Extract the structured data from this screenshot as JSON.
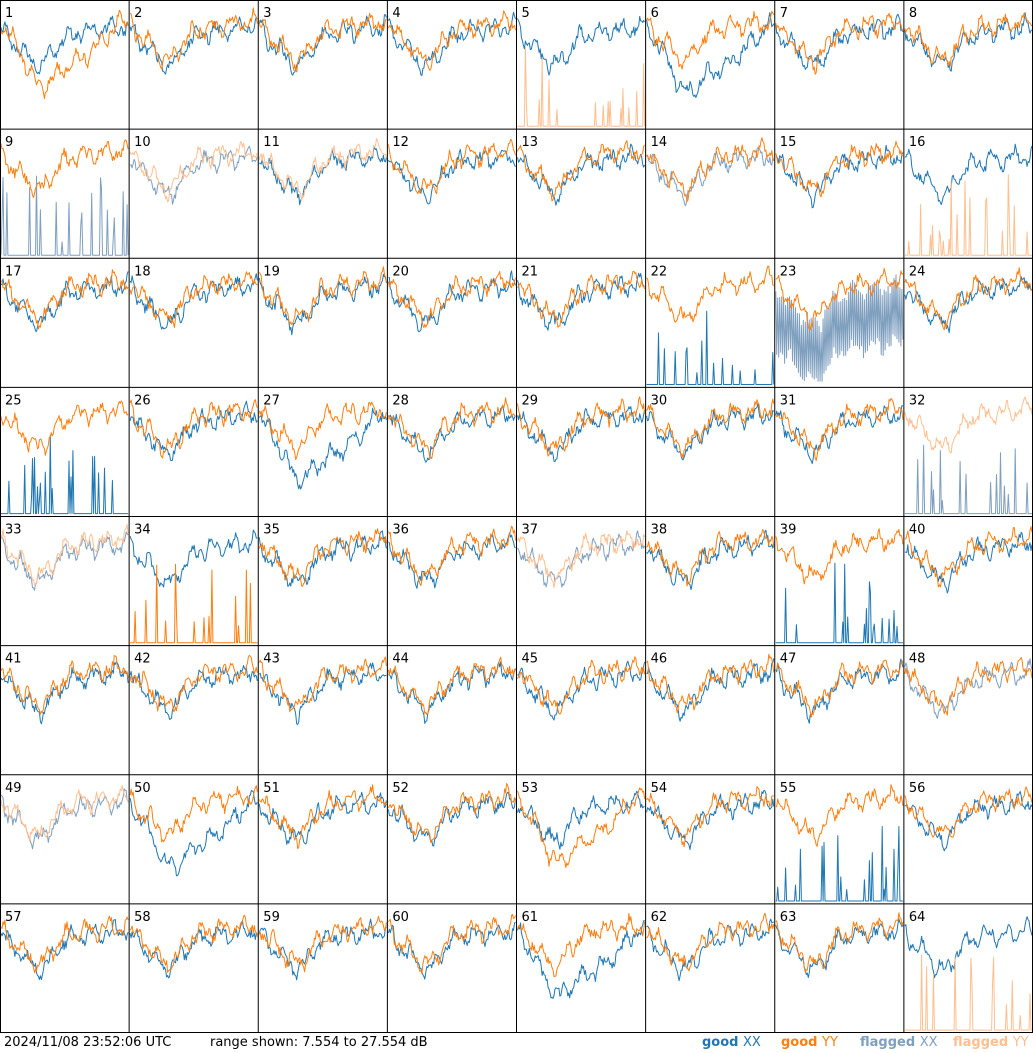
{
  "figure": {
    "timestamp": "2024/11/08 23:52:06 UTC",
    "range_text": "range shown: 7.554 to 27.554 dB",
    "legend": [
      {
        "label": "good",
        "pol": "XX",
        "color": "#1f77b4"
      },
      {
        "label": "good",
        "pol": "YY",
        "color": "#ff7f0e"
      },
      {
        "label": "flagged",
        "pol": "XX",
        "color": "#7f9fbf"
      },
      {
        "label": "flagged",
        "pol": "YY",
        "color": "#ffbf8f"
      }
    ],
    "colors": {
      "good_xx": "#1f77b4",
      "good_yy": "#ff7f0e",
      "flagged_xx": "#7f9fbf",
      "flagged_yy": "#ffbf8f",
      "grid": "#000000"
    }
  },
  "chart_data": {
    "type": "line",
    "description_units": "dB",
    "ylim": [
      7.554,
      27.554
    ],
    "grid": {
      "rows": 8,
      "cols": 8
    },
    "panels": [
      {
        "id": 1,
        "xx": "good",
        "yy": "good",
        "style": "yy_sag"
      },
      {
        "id": 2,
        "xx": "good",
        "yy": "good",
        "style": "normal"
      },
      {
        "id": 3,
        "xx": "good",
        "yy": "good",
        "style": "normal"
      },
      {
        "id": 4,
        "xx": "good",
        "yy": "good",
        "style": "normal"
      },
      {
        "id": 5,
        "xx": "good",
        "yy": "flagged",
        "style": "yy_spikes"
      },
      {
        "id": 6,
        "xx": "good",
        "yy": "good",
        "style": "xx_sag"
      },
      {
        "id": 7,
        "xx": "good",
        "yy": "good",
        "style": "normal"
      },
      {
        "id": 8,
        "xx": "good",
        "yy": "good",
        "style": "normal"
      },
      {
        "id": 9,
        "xx": "flagged",
        "yy": "good",
        "style": "xx_spikes"
      },
      {
        "id": 10,
        "xx": "flagged",
        "yy": "flagged",
        "style": "normal"
      },
      {
        "id": 11,
        "xx": "good",
        "yy": "flagged",
        "style": "normal"
      },
      {
        "id": 12,
        "xx": "good",
        "yy": "good",
        "style": "normal"
      },
      {
        "id": 13,
        "xx": "good",
        "yy": "good",
        "style": "normal"
      },
      {
        "id": 14,
        "xx": "flagged",
        "yy": "good",
        "style": "normal"
      },
      {
        "id": 15,
        "xx": "good",
        "yy": "good",
        "style": "normal"
      },
      {
        "id": 16,
        "xx": "good",
        "yy": "flagged",
        "style": "yy_spikes"
      },
      {
        "id": 17,
        "xx": "good",
        "yy": "good",
        "style": "normal"
      },
      {
        "id": 18,
        "xx": "good",
        "yy": "good",
        "style": "normal"
      },
      {
        "id": 19,
        "xx": "good",
        "yy": "good",
        "style": "normal"
      },
      {
        "id": 20,
        "xx": "good",
        "yy": "good",
        "style": "normal"
      },
      {
        "id": 21,
        "xx": "good",
        "yy": "good",
        "style": "normal"
      },
      {
        "id": 22,
        "xx": "good",
        "yy": "good",
        "style": "xx_spikes"
      },
      {
        "id": 23,
        "xx": "flagged",
        "yy": "good",
        "style": "xx_noisy"
      },
      {
        "id": 24,
        "xx": "good",
        "yy": "good",
        "style": "normal"
      },
      {
        "id": 25,
        "xx": "good",
        "yy": "good",
        "style": "xx_spikes"
      },
      {
        "id": 26,
        "xx": "good",
        "yy": "good",
        "style": "normal"
      },
      {
        "id": 27,
        "xx": "good",
        "yy": "good",
        "style": "xx_sag"
      },
      {
        "id": 28,
        "xx": "good",
        "yy": "good",
        "style": "normal"
      },
      {
        "id": 29,
        "xx": "good",
        "yy": "good",
        "style": "normal"
      },
      {
        "id": 30,
        "xx": "good",
        "yy": "good",
        "style": "normal"
      },
      {
        "id": 31,
        "xx": "good",
        "yy": "good",
        "style": "normal"
      },
      {
        "id": 32,
        "xx": "flagged",
        "yy": "flagged",
        "style": "xx_spikes"
      },
      {
        "id": 33,
        "xx": "flagged",
        "yy": "flagged",
        "style": "normal"
      },
      {
        "id": 34,
        "xx": "good",
        "yy": "good",
        "style": "yy_spikes"
      },
      {
        "id": 35,
        "xx": "good",
        "yy": "good",
        "style": "normal"
      },
      {
        "id": 36,
        "xx": "good",
        "yy": "good",
        "style": "normal"
      },
      {
        "id": 37,
        "xx": "flagged",
        "yy": "flagged",
        "style": "normal"
      },
      {
        "id": 38,
        "xx": "good",
        "yy": "good",
        "style": "normal"
      },
      {
        "id": 39,
        "xx": "good",
        "yy": "good",
        "style": "xx_spikes"
      },
      {
        "id": 40,
        "xx": "good",
        "yy": "good",
        "style": "normal"
      },
      {
        "id": 41,
        "xx": "good",
        "yy": "good",
        "style": "normal"
      },
      {
        "id": 42,
        "xx": "good",
        "yy": "good",
        "style": "normal"
      },
      {
        "id": 43,
        "xx": "good",
        "yy": "good",
        "style": "normal"
      },
      {
        "id": 44,
        "xx": "good",
        "yy": "good",
        "style": "normal"
      },
      {
        "id": 45,
        "xx": "good",
        "yy": "good",
        "style": "normal"
      },
      {
        "id": 46,
        "xx": "good",
        "yy": "good",
        "style": "normal"
      },
      {
        "id": 47,
        "xx": "good",
        "yy": "good",
        "style": "normal"
      },
      {
        "id": 48,
        "xx": "flagged",
        "yy": "good",
        "style": "normal"
      },
      {
        "id": 49,
        "xx": "flagged",
        "yy": "flagged",
        "style": "normal"
      },
      {
        "id": 50,
        "xx": "good",
        "yy": "good",
        "style": "xx_sag"
      },
      {
        "id": 51,
        "xx": "good",
        "yy": "good",
        "style": "normal"
      },
      {
        "id": 52,
        "xx": "good",
        "yy": "good",
        "style": "normal"
      },
      {
        "id": 53,
        "xx": "good",
        "yy": "good",
        "style": "yy_sag"
      },
      {
        "id": 54,
        "xx": "good",
        "yy": "good",
        "style": "normal"
      },
      {
        "id": 55,
        "xx": "good",
        "yy": "good",
        "style": "xx_spikes"
      },
      {
        "id": 56,
        "xx": "good",
        "yy": "good",
        "style": "normal"
      },
      {
        "id": 57,
        "xx": "good",
        "yy": "good",
        "style": "normal"
      },
      {
        "id": 58,
        "xx": "good",
        "yy": "good",
        "style": "normal"
      },
      {
        "id": 59,
        "xx": "good",
        "yy": "good",
        "style": "normal"
      },
      {
        "id": 60,
        "xx": "good",
        "yy": "good",
        "style": "normal"
      },
      {
        "id": 61,
        "xx": "good",
        "yy": "good",
        "style": "xx_sag"
      },
      {
        "id": 62,
        "xx": "good",
        "yy": "good",
        "style": "normal"
      },
      {
        "id": 63,
        "xx": "good",
        "yy": "good",
        "style": "normal"
      },
      {
        "id": 64,
        "xx": "good",
        "yy": "flagged",
        "style": "yy_spikes"
      }
    ]
  }
}
